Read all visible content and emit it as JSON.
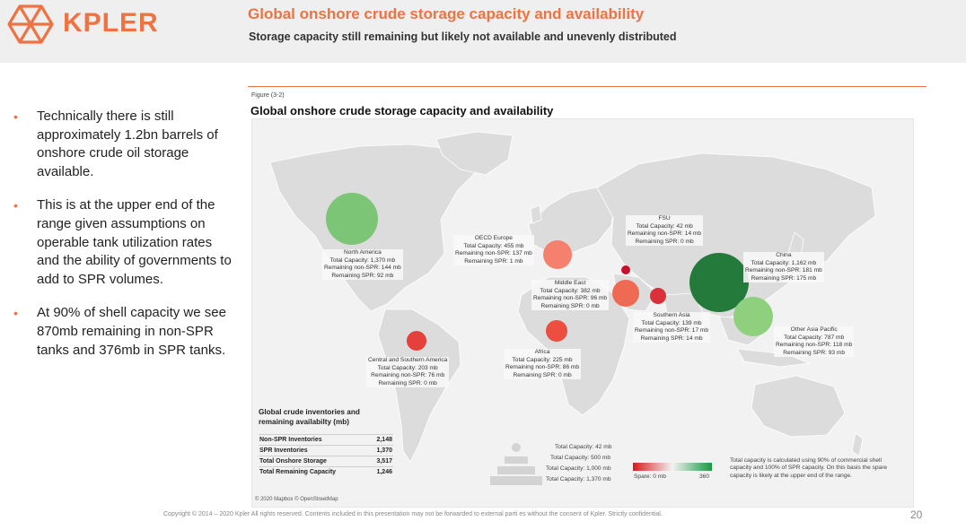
{
  "brand": {
    "logo_text": "KPLER",
    "accent": "#ee7343"
  },
  "header": {
    "title": "Global onshore crude storage capacity and availability",
    "subtitle": "Storage capacity still remaining but likely not available and unevenly distributed"
  },
  "bullets": [
    "Technically there is still approximately 1.2bn barrels of onshore crude oil storage available.",
    "This is at the upper end of the range given assumptions on operable tank utilization rates and the ability of governments to add to SPR volumes.",
    "At 90% of shell capacity we see 870mb remaining in non-SPR tanks and 376mb in SPR tanks."
  ],
  "figure": {
    "label": "Figure (3-2)",
    "title": "Global onshore crude storage capacity and availability"
  },
  "regions": [
    {
      "name": "North America",
      "total": "Total Capacity: 1,370 mb",
      "non_spr": "Remaining non-SPR: 144 mb",
      "spr": "Remaining SPR: 92 mb",
      "color": "#7cc576"
    },
    {
      "name": "OECD Europe",
      "total": "Total Capacity: 455 mb",
      "non_spr": "Remaining non-SPR: 137 mb",
      "spr": "Remaining SPR: 1 mb",
      "color": "#f4806d"
    },
    {
      "name": "FSU",
      "total": "Total Capacity: 42 mb",
      "non_spr": "Remaining non-SPR: 14 mb",
      "spr": "Remaining SPR: 0 mb",
      "color": "#c8102e"
    },
    {
      "name": "China",
      "total": "Total Capacity: 1,162 mb",
      "non_spr": "Remaining non-SPR: 181 mb",
      "spr": "Remaining SPR: 175 mb",
      "color": "#237a3b"
    },
    {
      "name": "Middle East",
      "total": "Total Capacity: 382 mb",
      "non_spr": "Remaining non-SPR: 96 mb",
      "spr": "Remaining SPR: 0 mb",
      "color": "#ef6a52"
    },
    {
      "name": "Southern Asia",
      "total": "Total Capacity: 139 mb",
      "non_spr": "Remaining non-SPR: 17 mb",
      "spr": "Remaining SPR: 14 mb",
      "color": "#d9303a"
    },
    {
      "name": "Other Asia Pacific",
      "total": "Total Capacity: 787 mb",
      "non_spr": "Remaining non-SPR: 118 mb",
      "spr": "Remaining SPR: 93 mb",
      "color": "#8fd07f"
    },
    {
      "name": "Central and Southern America",
      "total": "Total Capacity: 203 mb",
      "non_spr": "Remaining non-SPR: 76 mb",
      "spr": "Remaining SPR: 0 mb",
      "color": "#e5403c"
    },
    {
      "name": "Africa",
      "total": "Total Capacity: 225 mb",
      "non_spr": "Remaining non-SPR: 86 mb",
      "spr": "Remaining SPR: 0 mb",
      "color": "#ec4e3f"
    }
  ],
  "inventory_table": {
    "title": "Global crude inventories and remaining availabilty (mb)",
    "rows": [
      {
        "label": "Non-SPR Inventories",
        "value": "2,148"
      },
      {
        "label": "SPR Inventories",
        "value": "1,370"
      },
      {
        "label": "Total Onshore Storage",
        "value": "3,517"
      },
      {
        "label": "Total Remaining Capacity",
        "value": "1,246"
      }
    ]
  },
  "size_legend": [
    "Total Capacity: 42 mb",
    "Total Capacity: 500 mb",
    "Total Capacity: 1,000 mb",
    "Total Capacity: 1,370 mb"
  ],
  "color_legend": {
    "min_label": "Spare: 0 mb",
    "max_label": "360",
    "low_color": "#d7191c",
    "mid_color": "#f2f2f2",
    "high_color": "#1a9641"
  },
  "note": "Total capacity is calculated using 90% of commercial shell capacity and 100% of SPR capacity. On this basis the spare capacity is likely at the upper end of the range.",
  "attribution": "© 2020 Mapbox © OpenStreetMap",
  "footer": "Copyright © 2014 – 2020 Kpler All rights reserved. Contents included in this presentation may not be forwarded to external parti es without the consent of Kpler. Strictly confidential.",
  "page_number": "20"
}
